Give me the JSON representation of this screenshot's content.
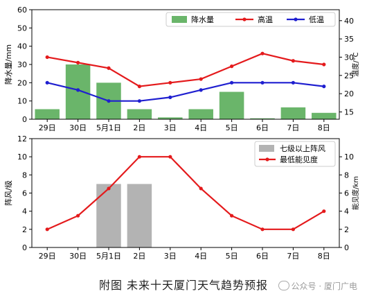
{
  "chart_data": [
    {
      "type": "bar+line",
      "categories": [
        "29日",
        "30日",
        "5月1日",
        "2日",
        "3日",
        "4日",
        "5日",
        "6日",
        "7日",
        "8日"
      ],
      "ylabel_left": "降水量/mm",
      "ylabel_right": "温度/°C",
      "ylim_left": [
        0,
        60
      ],
      "yticks_left": [
        0,
        10,
        20,
        30,
        40,
        50,
        60
      ],
      "ylim_right": [
        13,
        43
      ],
      "yticks_right": [
        15,
        20,
        25,
        30,
        35,
        40
      ],
      "legend_position": "top-right",
      "colors": {
        "bar": "#6ab56a",
        "high": "#e41a1c",
        "low": "#1f1fd0"
      },
      "series": [
        {
          "name": "降水量",
          "kind": "bar",
          "axis": "left",
          "values": [
            5.5,
            30,
            20,
            5.5,
            1,
            5.5,
            15,
            0.5,
            6.5,
            3.5
          ]
        },
        {
          "name": "高温",
          "kind": "line",
          "axis": "right",
          "values": [
            30,
            28.5,
            27,
            22,
            23,
            24,
            27.5,
            31,
            29,
            28
          ]
        },
        {
          "name": "低温",
          "kind": "line",
          "axis": "right",
          "values": [
            23,
            21,
            18,
            18,
            19,
            21,
            23,
            23,
            23,
            22
          ]
        }
      ]
    },
    {
      "type": "bar+line",
      "categories": [
        "29日",
        "30日",
        "5月1日",
        "2日",
        "3日",
        "4日",
        "5日",
        "6日",
        "7日",
        "8日"
      ],
      "ylabel_left": "阵风/级",
      "ylabel_right": "能见度/km",
      "ylim_left": [
        0,
        12
      ],
      "yticks_left": [
        0,
        2,
        4,
        6,
        8,
        10,
        12
      ],
      "ylim_right": [
        0,
        12
      ],
      "yticks_right": [
        0,
        2,
        4,
        6,
        8,
        10
      ],
      "legend_position": "top-right",
      "colors": {
        "bar": "#b3b3b3",
        "line": "#e41a1c"
      },
      "series": [
        {
          "name": "七级以上阵风",
          "kind": "bar",
          "axis": "left",
          "values": [
            0,
            0,
            7,
            7,
            0,
            0,
            0,
            0,
            0,
            0
          ]
        },
        {
          "name": "最低能见度",
          "kind": "line",
          "axis": "right",
          "values": [
            2,
            3.5,
            6.5,
            10,
            10,
            6.5,
            3.5,
            2,
            2,
            4
          ]
        }
      ]
    }
  ],
  "caption": "附图 未来十天厦门天气趋势预报",
  "watermark": "公众号 · 厦门广电"
}
